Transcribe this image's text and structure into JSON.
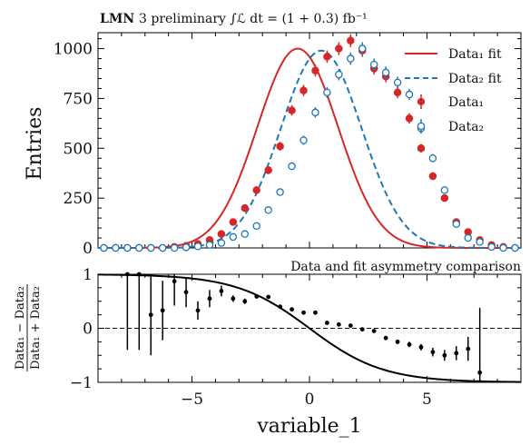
{
  "chart_data": [
    {
      "type": "scatter",
      "title_bold": "LMN",
      "title_rest": "3 preliminary ∫ℒ dt = (1 + 0.3) fb⁻¹",
      "ylabel": "Entries",
      "xlim": [
        -9,
        9
      ],
      "ylim": [
        0,
        1080
      ],
      "yticks": [
        0,
        250,
        500,
        750,
        1000
      ],
      "legend_position": "top-right",
      "legend": {
        "fit1": "Data₁ fit",
        "fit2": "Data₂ fit",
        "data1": "Data₁",
        "data2": "Data₂"
      },
      "colors": {
        "data1": "#d62728",
        "data2": "#1f77b4"
      },
      "fits": [
        {
          "name": "Data₁ fit",
          "mean": -0.5,
          "sigma": 1.72,
          "amplitude": 1000,
          "style": "solid"
        },
        {
          "name": "Data₂ fit",
          "mean": 0.5,
          "sigma": 1.72,
          "amplitude": 990,
          "style": "dashed"
        }
      ],
      "series": [
        {
          "name": "Data₁",
          "marker": "filled-circle",
          "x": [
            -8.75,
            -8.25,
            -7.75,
            -7.25,
            -6.75,
            -6.25,
            -5.75,
            -5.25,
            -4.75,
            -4.25,
            -3.75,
            -3.25,
            -2.75,
            -2.25,
            -1.75,
            -1.25,
            -0.75,
            -0.25,
            0.25,
            0.75,
            1.25,
            1.75,
            2.25,
            2.75,
            3.25,
            3.75,
            4.25,
            4.75,
            5.25,
            5.75,
            6.25,
            6.75,
            7.25,
            7.75,
            8.25,
            8.75
          ],
          "y": [
            0,
            0,
            0,
            0,
            0,
            0,
            5,
            10,
            20,
            40,
            70,
            130,
            200,
            290,
            390,
            510,
            690,
            790,
            890,
            960,
            1000,
            1040,
            990,
            900,
            860,
            780,
            650,
            500,
            360,
            250,
            130,
            80,
            40,
            15,
            5,
            0
          ],
          "yerr": [
            1,
            1,
            1,
            1,
            1,
            1,
            2,
            3,
            5,
            7,
            9,
            12,
            15,
            17,
            20,
            22,
            26,
            28,
            30,
            31,
            32,
            32,
            31,
            30,
            29,
            28,
            26,
            22,
            19,
            16,
            12,
            9,
            7,
            4,
            2,
            1
          ]
        },
        {
          "name": "Data₂",
          "marker": "open-circle",
          "x": [
            -8.75,
            -8.25,
            -7.75,
            -7.25,
            -6.75,
            -6.25,
            -5.75,
            -5.25,
            -4.75,
            -4.25,
            -3.75,
            -3.25,
            -2.75,
            -2.25,
            -1.75,
            -1.25,
            -0.75,
            -0.25,
            0.25,
            0.75,
            1.25,
            1.75,
            2.25,
            2.75,
            3.25,
            3.75,
            4.25,
            4.75,
            5.25,
            5.75,
            6.25,
            6.75,
            7.25,
            7.75,
            8.25,
            8.75
          ],
          "y": [
            0,
            0,
            0,
            0,
            0,
            0,
            0,
            3,
            8,
            15,
            25,
            55,
            70,
            110,
            190,
            280,
            410,
            540,
            680,
            780,
            870,
            950,
            1000,
            920,
            880,
            830,
            770,
            600,
            450,
            290,
            120,
            50,
            30,
            5,
            0,
            0
          ],
          "yerr": [
            1,
            1,
            1,
            1,
            1,
            1,
            1,
            2,
            3,
            4,
            5,
            8,
            9,
            11,
            14,
            17,
            20,
            23,
            26,
            28,
            29,
            31,
            32,
            30,
            30,
            29,
            28,
            25,
            21,
            17,
            11,
            7,
            6,
            2,
            1,
            1
          ]
        }
      ]
    },
    {
      "type": "scatter",
      "annotation": "Data and fit asymmetry comparison",
      "xlabel": "variable_1",
      "ylabel": "(Data₁ − Data₂) / (Data₁ + Data₂)",
      "ylabel_num": "Data₁ − Data₂",
      "ylabel_den": "Data₁ + Data₂",
      "xlim": [
        -9,
        9
      ],
      "ylim": [
        -1,
        1
      ],
      "xticks": [
        -5,
        0,
        5
      ],
      "yticks": [
        -1,
        0,
        1
      ],
      "reference_line": 0,
      "series": [
        {
          "name": "",
          "x": [
            -7.75,
            -7.25,
            -6.75,
            -6.25,
            -5.75,
            -5.25,
            -4.75,
            -4.25,
            -3.75,
            -3.25,
            -2.75,
            -2.25,
            -1.75,
            -1.25,
            -0.75,
            -0.25,
            0.25,
            0.75,
            1.25,
            1.75,
            2.25,
            2.75,
            3.25,
            3.75,
            4.25,
            4.75,
            5.25,
            5.75,
            6.25,
            6.75,
            7.25
          ],
          "y": [
            1.0,
            1.0,
            0.25,
            0.33,
            0.87,
            0.67,
            0.33,
            0.55,
            0.69,
            0.55,
            0.5,
            0.59,
            0.58,
            0.4,
            0.35,
            0.29,
            0.29,
            0.1,
            0.07,
            0.05,
            -0.02,
            -0.05,
            -0.18,
            -0.25,
            -0.3,
            -0.35,
            -0.44,
            -0.5,
            -0.46,
            -0.38,
            -0.82
          ],
          "yerr": [
            1.4,
            1.4,
            0.75,
            0.55,
            0.45,
            0.28,
            0.17,
            0.16,
            0.1,
            0.06,
            0.05,
            0.04,
            0.03,
            0.02,
            0.02,
            0.02,
            0.02,
            0.02,
            0.02,
            0.02,
            0.02,
            0.02,
            0.03,
            0.04,
            0.05,
            0.06,
            0.08,
            0.1,
            0.13,
            0.22,
            1.2
          ]
        }
      ],
      "fit_curve": {
        "name": "fit asymmetry",
        "scale": 1.72
      }
    }
  ]
}
